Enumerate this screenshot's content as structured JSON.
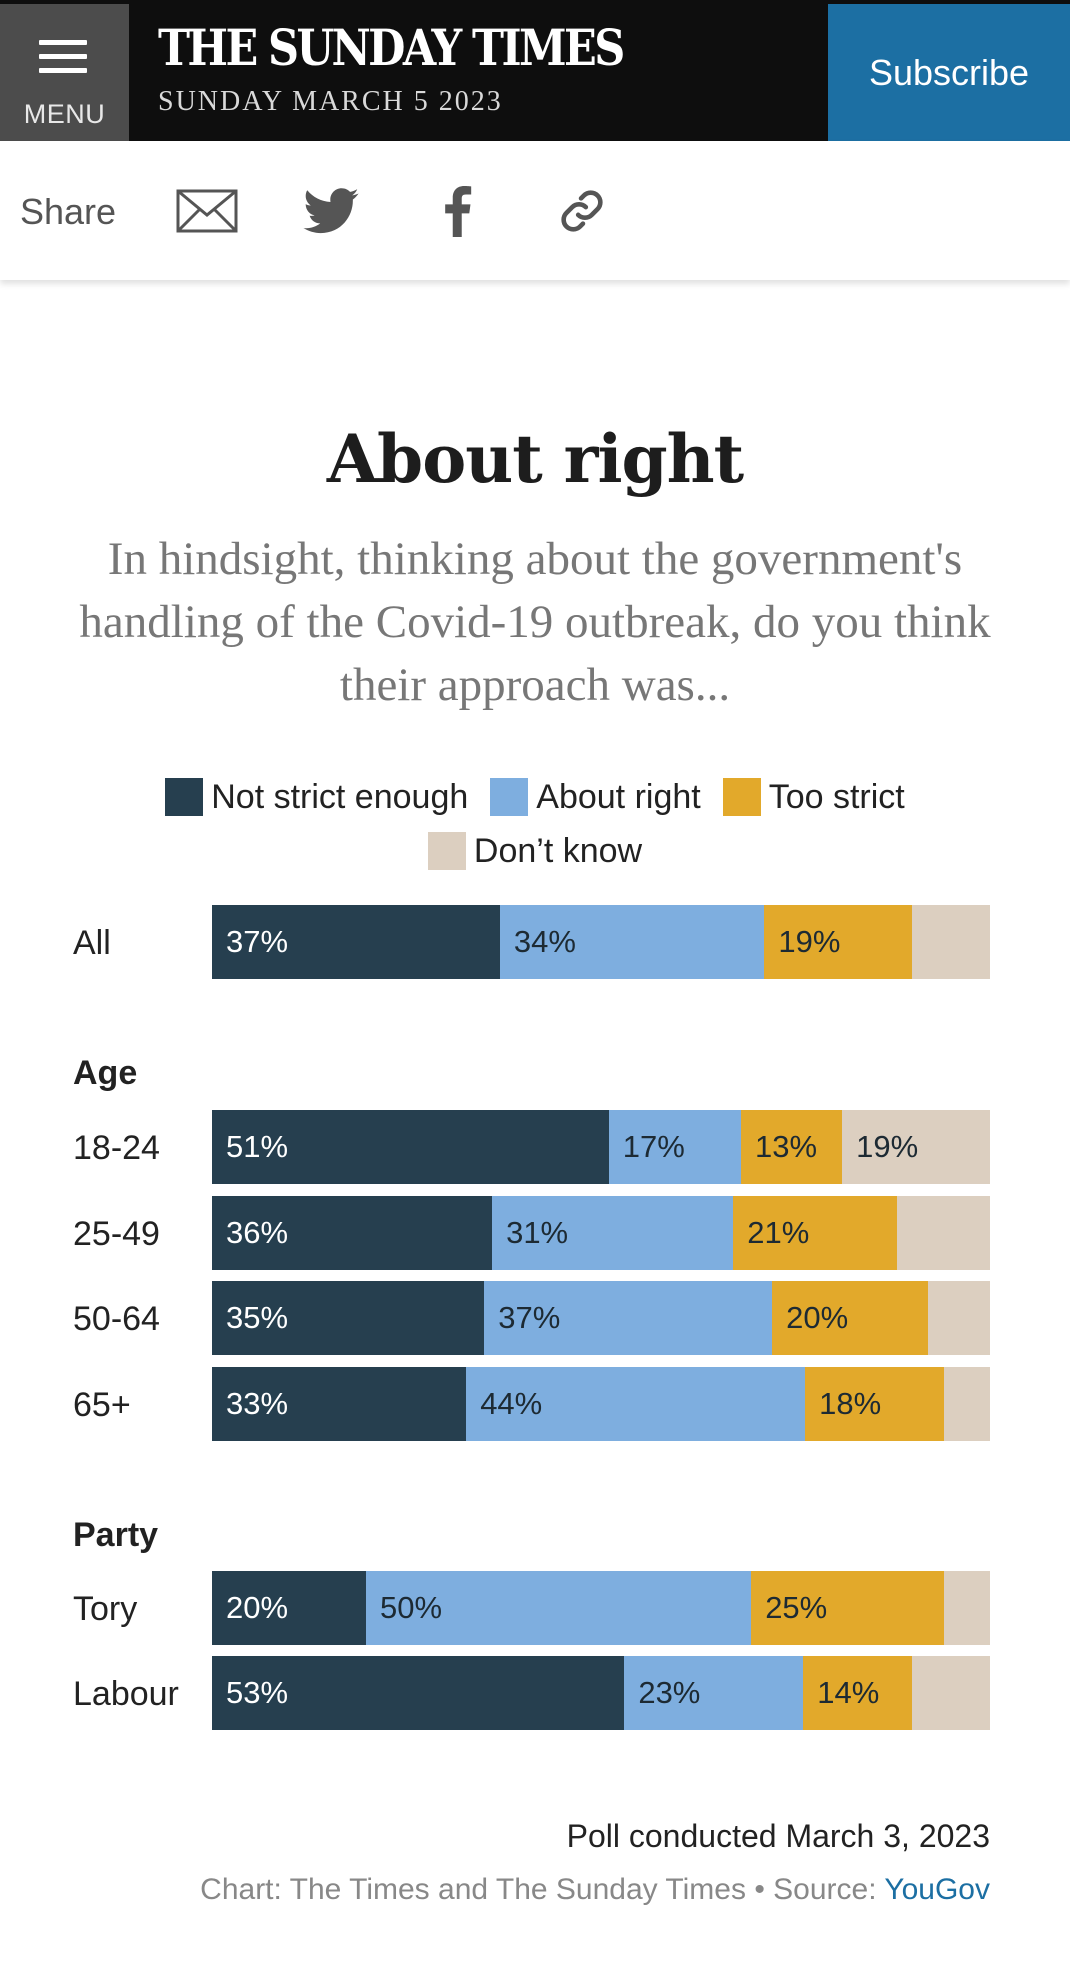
{
  "header": {
    "menu_label": "MENU",
    "masthead": "THE SUNDAY TIMES",
    "date": "SUNDAY MARCH 5 2023",
    "subscribe_label": "Subscribe"
  },
  "share": {
    "label": "Share",
    "icons": [
      "mail-icon",
      "twitter-icon",
      "facebook-icon",
      "link-icon"
    ]
  },
  "colors": {
    "not_strict_enough": "#263f4f",
    "about_right": "#7eaedf",
    "too_strict": "#e2a92b",
    "dont_know": "#dccfc0",
    "header_bg": "#0e0e0e",
    "subscribe_bg": "#1c6fa3"
  },
  "chart_data": {
    "type": "bar",
    "orientation": "horizontal",
    "stacked": true,
    "title": "About right",
    "subtitle": "In hindsight, thinking about the government's handling of the Covid-19 outbreak, do you think their approach was...",
    "legend": [
      "Not strict enough",
      "About right",
      "Too strict",
      "Don’t know"
    ],
    "series_keys": [
      "not_strict_enough",
      "about_right",
      "too_strict",
      "dont_know"
    ],
    "groups": [
      {
        "label": "",
        "rows": [
          {
            "label": "All",
            "values": [
              37,
              34,
              19,
              10
            ],
            "labels": [
              "37%",
              "34%",
              "19%",
              ""
            ]
          }
        ]
      },
      {
        "label": "Age",
        "rows": [
          {
            "label": "18-24",
            "values": [
              51,
              17,
              13,
              19
            ],
            "labels": [
              "51%",
              "17%",
              "13%",
              "19%"
            ]
          },
          {
            "label": "25-49",
            "values": [
              36,
              31,
              21,
              12
            ],
            "labels": [
              "36%",
              "31%",
              "21%",
              ""
            ]
          },
          {
            "label": "50-64",
            "values": [
              35,
              37,
              20,
              8
            ],
            "labels": [
              "35%",
              "37%",
              "20%",
              ""
            ]
          },
          {
            "label": "65+",
            "values": [
              33,
              44,
              18,
              6
            ],
            "labels": [
              "33%",
              "44%",
              "18%",
              ""
            ]
          }
        ]
      },
      {
        "label": "Party",
        "rows": [
          {
            "label": "Tory",
            "values": [
              20,
              50,
              25,
              6
            ],
            "labels": [
              "20%",
              "50%",
              "25%",
              ""
            ]
          },
          {
            "label": "Labour",
            "values": [
              53,
              23,
              14,
              10
            ],
            "labels": [
              "53%",
              "23%",
              "14%",
              ""
            ]
          }
        ]
      }
    ],
    "note": "Poll conducted March 3, 2023",
    "credit_prefix": "Chart: The Times and The Sunday Times • Source: ",
    "credit_source": "YouGov"
  }
}
